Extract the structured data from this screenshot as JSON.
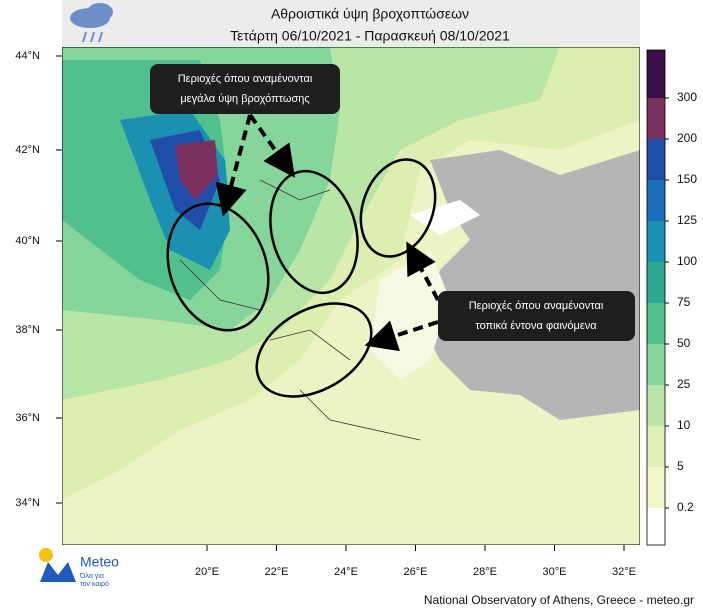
{
  "header": {
    "title": "Αθροιστικά ύψη βροχοπτώσεων",
    "subtitle": "Τετάρτη 06/10/2021 - Παρασκευή 08/10/2021"
  },
  "map": {
    "lat_labels": [
      "44°N",
      "42°N",
      "40°N",
      "38°N",
      "36°N",
      "34°N"
    ],
    "lon_labels": [
      "20°E",
      "22°E",
      "24°E",
      "26°E",
      "28°E",
      "30°E",
      "32°E"
    ]
  },
  "legend": {
    "ticks": [
      0.2,
      5,
      10,
      25,
      50,
      75,
      100,
      125,
      150,
      200,
      300
    ],
    "colors": [
      "#ffffff",
      "#f2f6c9",
      "#dff0b4",
      "#b9e6a7",
      "#86d59b",
      "#52c08c",
      "#2ca893",
      "#1c90b2",
      "#1b6fb9",
      "#1f4ea8",
      "#7a2f5e",
      "#3a0f4a"
    ]
  },
  "annotations": [
    {
      "lines": [
        "Περιοχές όπου αναμένονται",
        "μεγάλα ύψη βροχόπτωσης"
      ]
    },
    {
      "lines": [
        "Περιοχές όπου αναμένονται",
        "τοπικά έντονα φαινόμενα"
      ]
    }
  ],
  "logo": {
    "name": "Meteo",
    "tagline": [
      "Όλα για",
      "τον καιρό"
    ]
  },
  "footer": "National Observatory of Athens, Greece - meteo.gr"
}
